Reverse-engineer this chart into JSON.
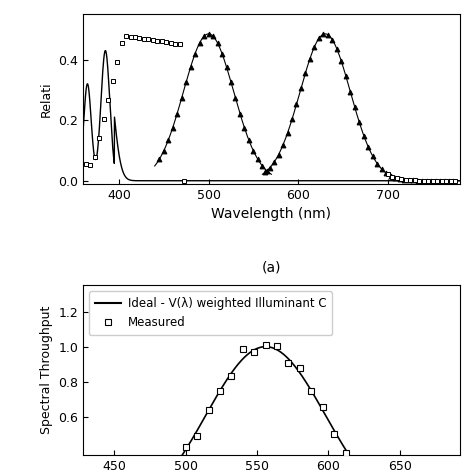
{
  "top_panel": {
    "ylabel": "Relati",
    "xlabel": "Wavelength (nm)",
    "subtitle": "(a)",
    "xlim": [
      360,
      780
    ],
    "ylim": [
      -0.01,
      0.55
    ],
    "yticks": [
      0.0,
      0.2,
      0.4
    ],
    "xticks": [
      400,
      500,
      600,
      700
    ]
  },
  "bottom_panel": {
    "ylabel": "Spectral Throughput",
    "ylim": [
      0.38,
      1.35
    ],
    "yticks": [
      0.6,
      0.8,
      1.0,
      1.2
    ],
    "legend_line": "Ideal - V(λ) weighted Illuminant C",
    "legend_marker": "Measured"
  },
  "colors": {
    "line": "#000000",
    "background": "#ffffff"
  }
}
